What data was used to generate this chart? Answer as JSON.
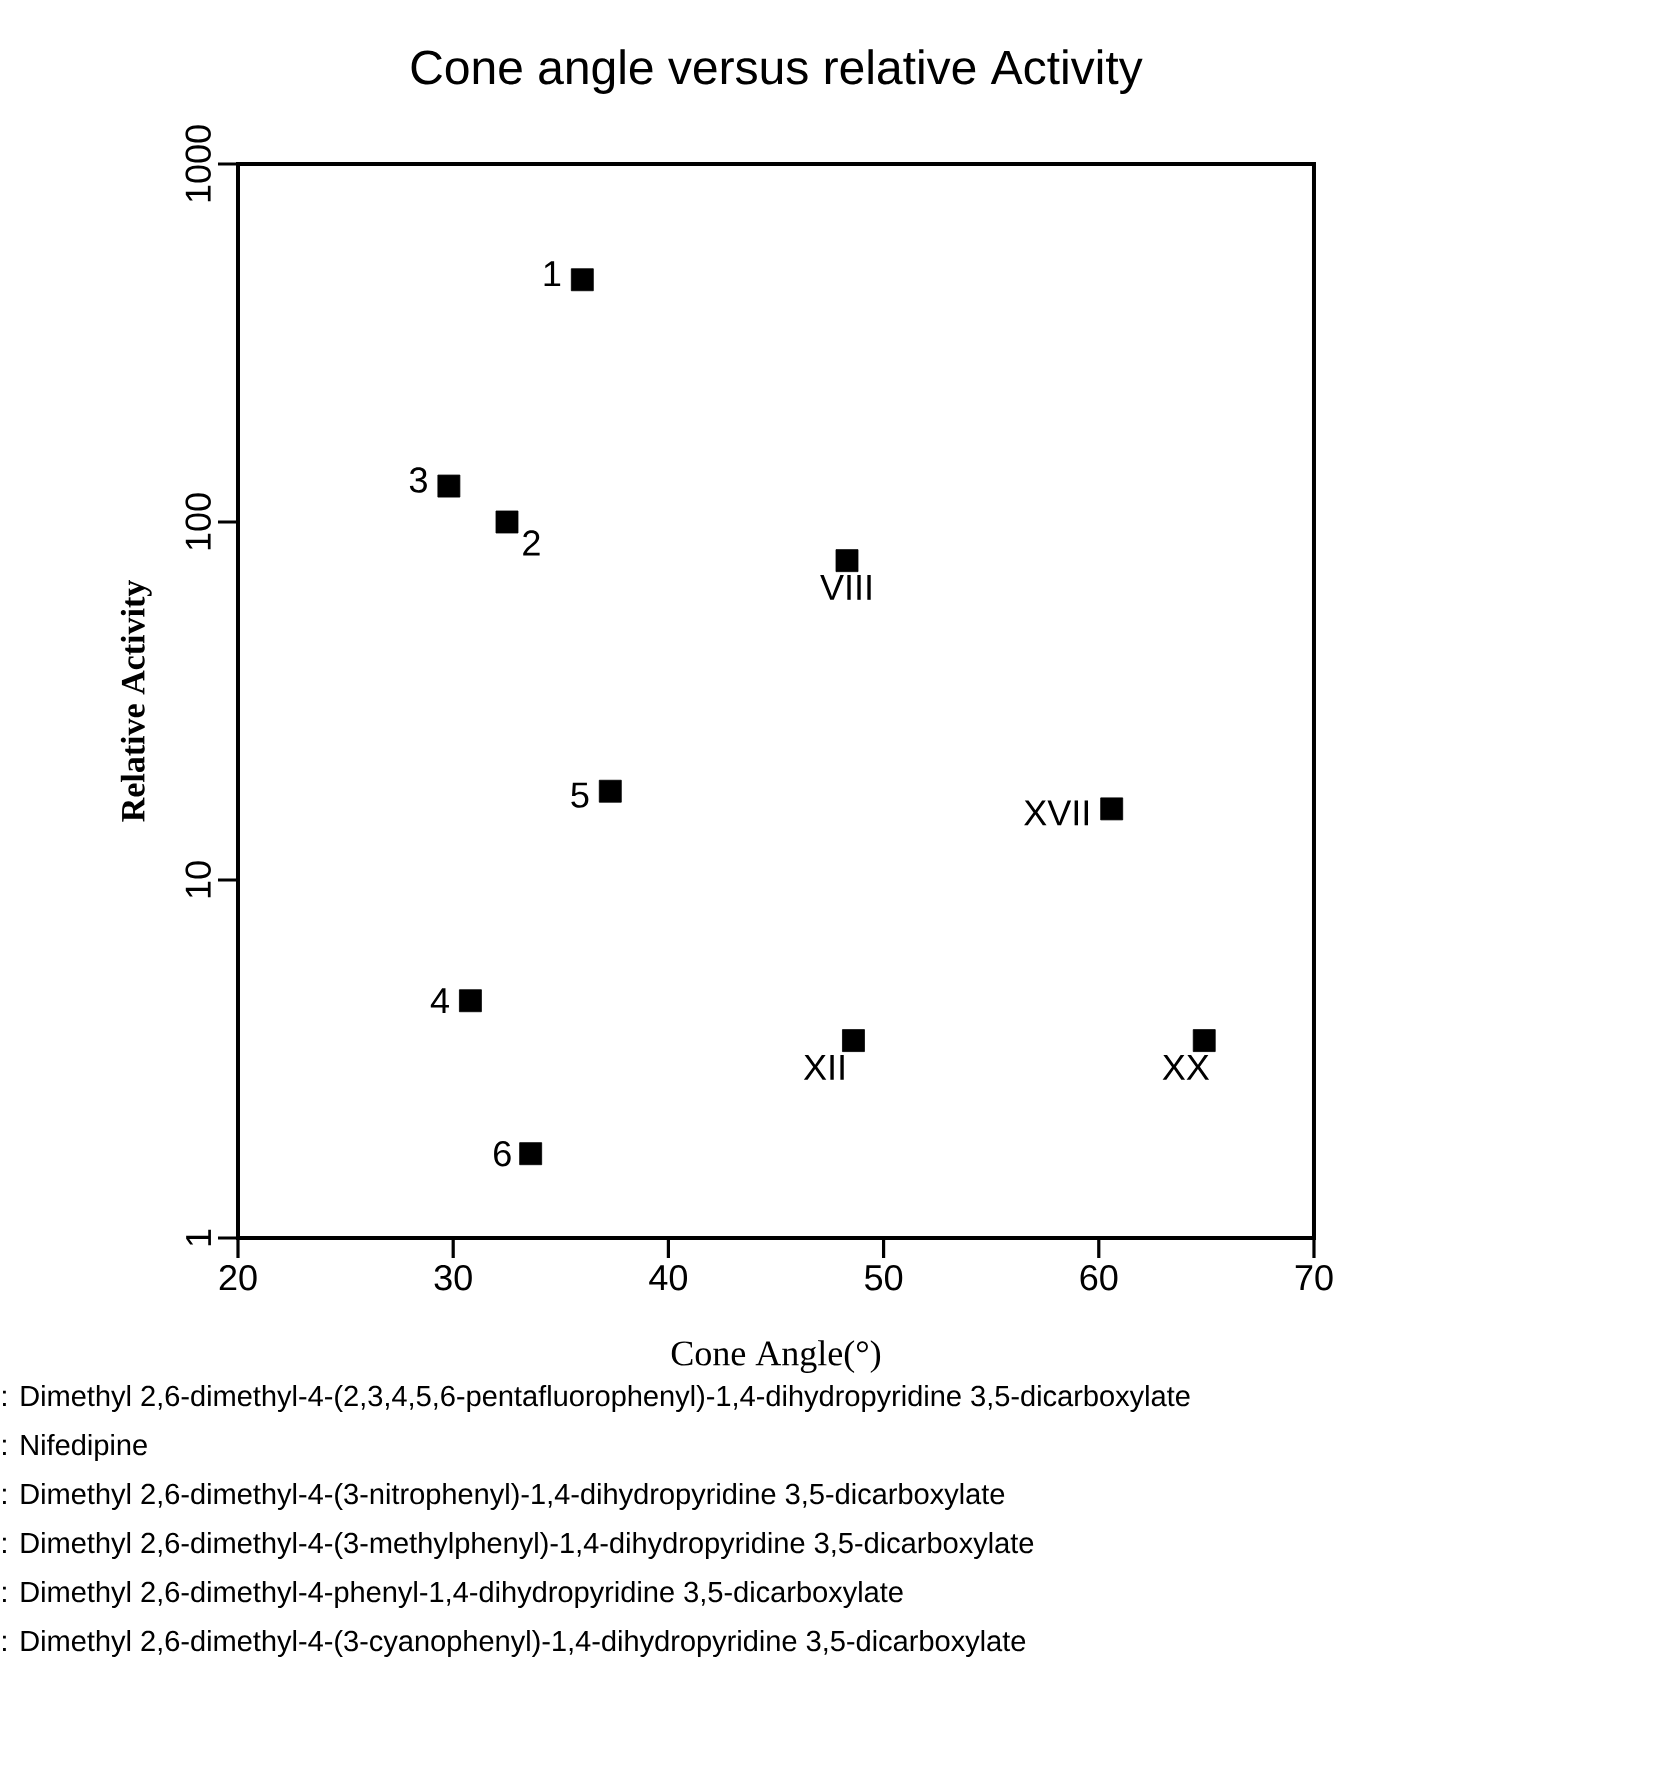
{
  "chart_data": {
    "type": "scatter",
    "title": "Cone angle versus relative Activity",
    "xlabel": "Cone Angle(°)",
    "ylabel": "Relative Activity",
    "xlim": [
      20,
      70
    ],
    "xticks": [
      20,
      30,
      40,
      50,
      60,
      70
    ],
    "ylim": [
      1,
      1000
    ],
    "yticks": [
      1,
      10,
      100,
      1000
    ],
    "log": "y",
    "marker": "square",
    "series": [
      {
        "color": "#000000",
        "x": [
          36.0,
          32.5,
          29.8,
          30.8,
          37.3,
          33.6,
          48.3,
          48.6,
          60.6,
          64.9
        ],
        "values": [
          475,
          100,
          126,
          4.6,
          17.7,
          1.72,
          78,
          3.56,
          15.8,
          3.56
        ]
      }
    ],
    "annotations": [
      {
        "text": "1",
        "x": 36.0,
        "y": 475
      },
      {
        "text": "2",
        "x": 32.5,
        "y": 100
      },
      {
        "text": "3",
        "x": 29.8,
        "y": 126
      },
      {
        "text": "4",
        "x": 30.8,
        "y": 4.6
      },
      {
        "text": "5",
        "x": 37.3,
        "y": 17.7
      },
      {
        "text": "6",
        "x": 33.6,
        "y": 1.72
      },
      {
        "text": "VIII",
        "x": 48.3,
        "y": 78
      },
      {
        "text": "XII",
        "x": 48.6,
        "y": 3.56
      },
      {
        "text": "XVII",
        "x": 60.6,
        "y": 15.8
      },
      {
        "text": "XX",
        "x": 64.9,
        "y": 3.56
      },
      ": Dimethyl 2,6-dimethyl-4-(2,3,4,5,6-pentafluorophenyl)-1,4-dihydropyridine 3,5-dicarboxylate",
      ": Nifedipine",
      ": Dimethyl 2,6-dimethyl-4-(3-nitrophenyl)-1,4-dihydropyridine 3,5-dicarboxylate",
      ": Dimethyl 2,6-dimethyl-4-(3-methylphenyl)-1,4-dihydropyridine 3,5-dicarboxylate",
      ": Dimethyl 2,6-dimethyl-4-phenyl-1,4-dihydropyridine 3,5-dicarboxylate",
      ": Dimethyl 2,6-dimethyl-4-(3-cyanophenyl)-1,4-dihydropyridine 3,5-dicarboxylate"
    ]
  }
}
